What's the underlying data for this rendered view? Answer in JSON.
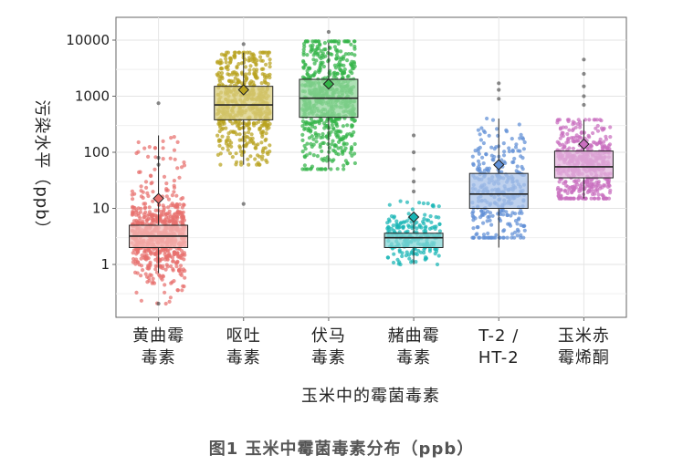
{
  "caption": "图1 玉米中霉菌毒素分布（ppb）",
  "chart_data": {
    "type": "boxplot",
    "title": "",
    "xlabel": "玉米中的霉菌毒素",
    "ylabel": "污染水平（ppb）",
    "y_scale": "log10",
    "ylim": [
      0.15,
      15000
    ],
    "yticks": [
      1,
      10,
      100,
      1000,
      10000
    ],
    "ytick_labels": [
      "1",
      "10",
      "100",
      "1000",
      "10000"
    ],
    "grid": true,
    "categories": [
      {
        "label_line1": "黄曲霉",
        "label_line2": "毒素",
        "color": "#e8706e",
        "fill": "#f4b8b6",
        "q1": 2,
        "median": 3.2,
        "q3": 5,
        "whisker_low": 0.7,
        "whisker_high": 200,
        "mean": 15,
        "point_range": [
          0.2,
          200
        ],
        "n_points": 700,
        "outliers": [
          0.2,
          750,
          80,
          60
        ]
      },
      {
        "label_line1": "呕吐",
        "label_line2": "毒素",
        "color": "#b8a21f",
        "fill": "#d9cd7f",
        "q1": 380,
        "median": 700,
        "q3": 1500,
        "whisker_low": 60,
        "whisker_high": 6000,
        "mean": 1300,
        "point_range": [
          60,
          6000
        ],
        "n_points": 550,
        "outliers": [
          12,
          8500
        ]
      },
      {
        "label_line1": "伏马",
        "label_line2": "毒素",
        "color": "#34b449",
        "fill": "#93d59c",
        "q1": 420,
        "median": 920,
        "q3": 2000,
        "whisker_low": 50,
        "whisker_high": 9000,
        "mean": 1650,
        "point_range": [
          50,
          9500
        ],
        "n_points": 650,
        "outliers": [
          14000
        ]
      },
      {
        "label_line1": "赭曲霉",
        "label_line2": "毒素",
        "color": "#19b5b5",
        "fill": "#86d5d5",
        "q1": 2,
        "median": 3,
        "q3": 3.6,
        "whisker_low": 1,
        "whisker_high": 8,
        "mean": 7,
        "point_range": [
          1,
          15
        ],
        "n_points": 220,
        "outliers": [
          20,
          30,
          50,
          100,
          200
        ]
      },
      {
        "label_line1": "T-2 /",
        "label_line2": "HT-2",
        "color": "#5f8fd6",
        "fill": "#a8c2e8",
        "q1": 10,
        "median": 18,
        "q3": 42,
        "whisker_low": 2,
        "whisker_high": 400,
        "mean": 60,
        "point_range": [
          3,
          400
        ],
        "n_points": 320,
        "outliers": [
          900,
          1300,
          1700
        ]
      },
      {
        "label_line1": "玉米赤",
        "label_line2": "霉烯酮",
        "color": "#c96fbf",
        "fill": "#e2b2db",
        "q1": 35,
        "median": 55,
        "q3": 105,
        "whisker_low": 15,
        "whisker_high": 380,
        "mean": 140,
        "point_range": [
          15,
          380
        ],
        "n_points": 500,
        "outliers": [
          700,
          1000,
          1500,
          2500,
          4500
        ]
      }
    ]
  }
}
